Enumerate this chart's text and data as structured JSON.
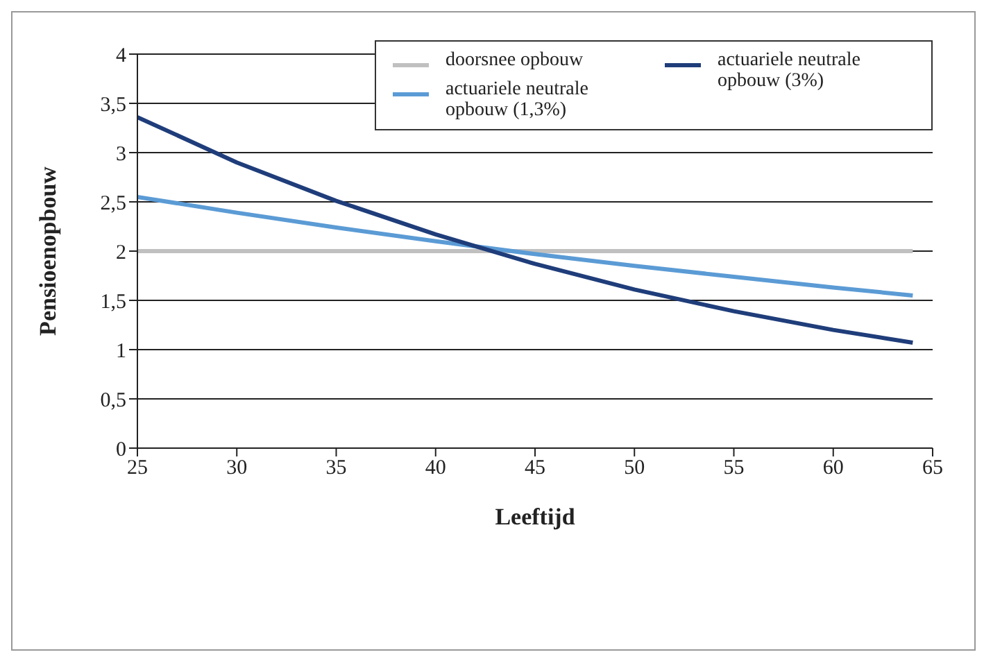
{
  "chart_data": {
    "type": "line",
    "xlabel": "Leeftijd",
    "ylabel": "Pensioenopbouw",
    "x": [
      25,
      30,
      35,
      40,
      45,
      50,
      55,
      60,
      64
    ],
    "series": [
      {
        "name": "doorsnee opbouw",
        "color": "#c0c0c0",
        "values": [
          2,
          2,
          2,
          2,
          2,
          2,
          2,
          2,
          2
        ]
      },
      {
        "name": "actuariele neutrale opbouw (1,3%)",
        "color": "#5b9bd5",
        "values": [
          2.55,
          2.39,
          2.24,
          2.1,
          1.97,
          1.85,
          1.74,
          1.63,
          1.55
        ]
      },
      {
        "name": "actuariele neutrale opbouw (3%)",
        "color": "#1f3d7a",
        "values": [
          3.36,
          2.9,
          2.51,
          2.17,
          1.87,
          1.61,
          1.39,
          1.2,
          1.07
        ]
      }
    ],
    "xlim": [
      25,
      65
    ],
    "xticks": [
      25,
      30,
      35,
      40,
      45,
      50,
      55,
      60,
      65
    ],
    "ylim": [
      0,
      4
    ],
    "yticks": [
      {
        "value": 0,
        "label": "0"
      },
      {
        "value": 0.5,
        "label": "0,5"
      },
      {
        "value": 1,
        "label": "1"
      },
      {
        "value": 1.5,
        "label": "1,5"
      },
      {
        "value": 2,
        "label": "2"
      },
      {
        "value": 2.5,
        "label": "2,5"
      },
      {
        "value": 3,
        "label": "3"
      },
      {
        "value": 3.5,
        "label": "3,5"
      },
      {
        "value": 4,
        "label": "4"
      }
    ],
    "grid": "y",
    "legend": "top right",
    "marker": "none",
    "line_style": "solid"
  }
}
